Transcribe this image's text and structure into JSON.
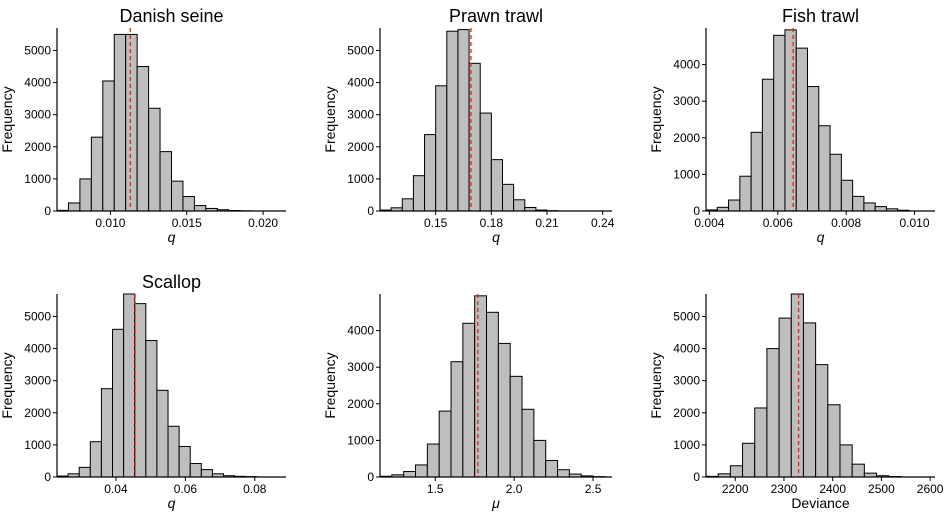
{
  "chart_data": [
    {
      "type": "bar",
      "title": "Danish seine",
      "xlabel": "q",
      "xlabel_italic": true,
      "ylabel": "Frequency",
      "xlim": [
        0.0065,
        0.0215
      ],
      "ylim": [
        0,
        5700
      ],
      "xticks": [
        0.01,
        0.015,
        0.02
      ],
      "xtick_labels": [
        "0.010",
        "0.015",
        "0.020"
      ],
      "yticks": [
        0,
        1000,
        2000,
        3000,
        4000,
        5000
      ],
      "ytick_labels": [
        "0",
        "1000",
        "2000",
        "3000",
        "4000",
        "5000"
      ],
      "bin_start": 0.0065,
      "bin_width": 0.00075,
      "values": [
        20,
        250,
        1000,
        2300,
        4050,
        5500,
        5500,
        4500,
        3200,
        1850,
        930,
        450,
        170,
        80,
        40,
        15,
        5
      ],
      "mean_line": 0.0113,
      "bar_color": "#bebebe",
      "mean_line_color": "#e0241c"
    },
    {
      "type": "bar",
      "title": "Prawn trawl",
      "xlabel": "q",
      "xlabel_italic": true,
      "ylabel": "Frequency",
      "xlim": [
        0.12,
        0.245
      ],
      "ylim": [
        0,
        5700
      ],
      "xticks": [
        0.15,
        0.18,
        0.21,
        0.24
      ],
      "xtick_labels": [
        "0.15",
        "0.18",
        "0.21",
        "0.24"
      ],
      "yticks": [
        0,
        1000,
        2000,
        3000,
        4000,
        5000
      ],
      "ytick_labels": [
        "0",
        "1000",
        "2000",
        "3000",
        "4000",
        "5000"
      ],
      "bin_start": 0.12,
      "bin_width": 0.006,
      "values": [
        30,
        100,
        380,
        1100,
        2380,
        3900,
        5600,
        5650,
        4600,
        3050,
        1600,
        830,
        350,
        110,
        30,
        10
      ],
      "mean_line": 0.169,
      "bar_color": "#bebebe",
      "mean_line_color": "#e0241c"
    },
    {
      "type": "bar",
      "title": "Fish trawl",
      "xlabel": "q",
      "xlabel_italic": true,
      "ylabel": "Frequency",
      "xlim": [
        0.0039,
        0.0106
      ],
      "ylim": [
        0,
        5000
      ],
      "xticks": [
        0.004,
        0.006,
        0.008,
        0.01
      ],
      "xtick_labels": [
        "0.004",
        "0.006",
        "0.008",
        "0.010"
      ],
      "yticks": [
        0,
        1000,
        2000,
        3000,
        4000
      ],
      "ytick_labels": [
        "0",
        "1000",
        "2000",
        "3000",
        "4000"
      ],
      "bin_start": 0.0039,
      "bin_width": 0.00033,
      "values": [
        30,
        100,
        300,
        950,
        2150,
        3600,
        4800,
        4950,
        4450,
        3400,
        2330,
        1550,
        840,
        400,
        220,
        120,
        60,
        20
      ],
      "mean_line": 0.00645,
      "bar_color": "#bebebe",
      "mean_line_color": "#e0241c"
    },
    {
      "type": "bar",
      "title": "Scallop",
      "xlabel": "q",
      "xlabel_italic": true,
      "ylabel": "Frequency",
      "xlim": [
        0.023,
        0.089
      ],
      "ylim": [
        0,
        5700
      ],
      "xticks": [
        0.04,
        0.06,
        0.08
      ],
      "xtick_labels": [
        "0.04",
        "0.06",
        "0.08"
      ],
      "yticks": [
        0,
        1000,
        2000,
        3000,
        4000,
        5000
      ],
      "ytick_labels": [
        "0",
        "1000",
        "2000",
        "3000",
        "4000",
        "5000"
      ],
      "bin_start": 0.023,
      "bin_width": 0.0032,
      "values": [
        30,
        100,
        300,
        1100,
        2750,
        4600,
        5700,
        5400,
        4250,
        2700,
        1580,
        950,
        420,
        230,
        100,
        40,
        20,
        10
      ],
      "mean_line": 0.0455,
      "bar_color": "#bebebe",
      "mean_line_color": "#e0241c"
    },
    {
      "type": "bar",
      "title": "",
      "xlabel": "μ",
      "xlabel_italic": true,
      "ylabel": "Frequency",
      "xlim": [
        1.15,
        2.62
      ],
      "ylim": [
        0,
        5000
      ],
      "xticks": [
        1.5,
        2.0,
        2.5
      ],
      "xtick_labels": [
        "1.5",
        "2.0",
        "2.5"
      ],
      "yticks": [
        0,
        1000,
        2000,
        3000,
        4000
      ],
      "ytick_labels": [
        "0",
        "1000",
        "2000",
        "3000",
        "4000"
      ],
      "bin_start": 1.15,
      "bin_width": 0.075,
      "values": [
        20,
        60,
        150,
        330,
        900,
        1800,
        3150,
        4200,
        4950,
        4500,
        3650,
        2750,
        1850,
        1000,
        450,
        200,
        80,
        30,
        10
      ],
      "mean_line": 1.77,
      "bar_color": "#bebebe",
      "mean_line_color": "#e0241c"
    },
    {
      "type": "bar",
      "title": "",
      "xlabel": "Deviance",
      "xlabel_italic": false,
      "ylabel": "Frequency",
      "xlim": [
        2140,
        2610
      ],
      "ylim": [
        0,
        5700
      ],
      "xticks": [
        2200,
        2300,
        2400,
        2500,
        2600
      ],
      "xtick_labels": [
        "2200",
        "2300",
        "2400",
        "2500",
        "2600"
      ],
      "yticks": [
        0,
        1000,
        2000,
        3000,
        4000,
        5000
      ],
      "ytick_labels": [
        "0",
        "1000",
        "2000",
        "3000",
        "4000",
        "5000"
      ],
      "bin_start": 2140,
      "bin_width": 25,
      "values": [
        20,
        100,
        350,
        1050,
        2150,
        4000,
        4950,
        5700,
        4800,
        3500,
        2250,
        1000,
        400,
        120,
        40,
        15
      ],
      "mean_line": 2330,
      "bar_color": "#bebebe",
      "mean_line_color": "#e0241c"
    }
  ]
}
